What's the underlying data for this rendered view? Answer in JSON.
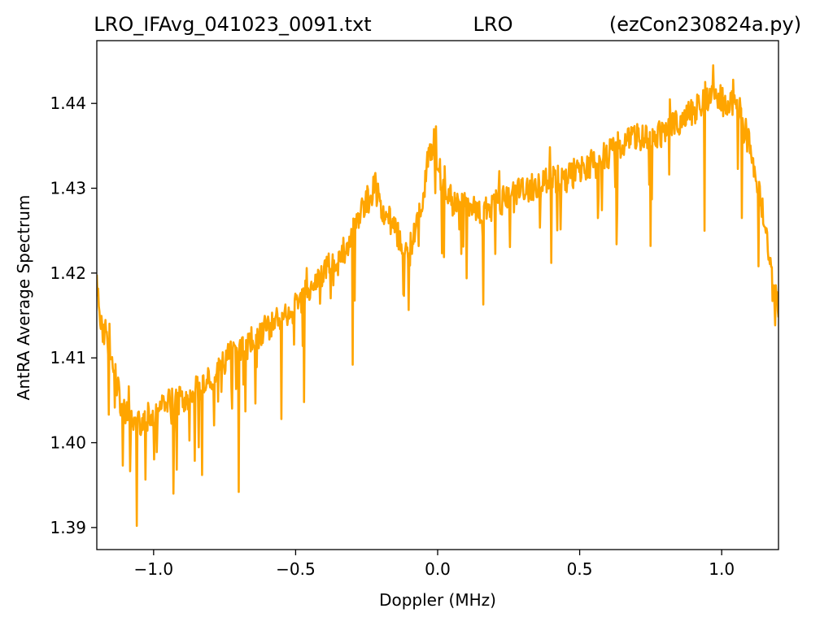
{
  "figure": {
    "title_left": "LRO_IFAvg_041023_0091.txt",
    "title_center": "LRO",
    "title_right": "(ezCon230824a.py)"
  },
  "chart_data": {
    "type": "line",
    "xlabel": "Doppler (MHz)",
    "ylabel": "AntRA Average Spectrum",
    "xlim": [
      -1.2,
      1.2
    ],
    "ylim": [
      1.3874,
      1.4474
    ],
    "xticks": [
      -1.0,
      -0.5,
      0.0,
      0.5,
      1.0
    ],
    "xtick_labels": [
      "−1.0",
      "−0.5",
      "0.0",
      "0.5",
      "1.0"
    ],
    "yticks": [
      1.39,
      1.4,
      1.41,
      1.42,
      1.43,
      1.44
    ],
    "ytick_labels": [
      "1.39",
      "1.40",
      "1.41",
      "1.42",
      "1.43",
      "1.44"
    ],
    "grid": false,
    "legend": "none",
    "series": [
      {
        "color": "#ffa500",
        "x": [
          -1.2,
          -1.19,
          -1.17,
          -1.15,
          -1.13,
          -1.11,
          -1.09,
          -1.07,
          -1.05,
          -1.03,
          -1.0,
          -0.97,
          -0.94,
          -0.9,
          -0.86,
          -0.82,
          -0.78,
          -0.74,
          -0.7,
          -0.66,
          -0.62,
          -0.58,
          -0.54,
          -0.5,
          -0.46,
          -0.42,
          -0.38,
          -0.34,
          -0.31,
          -0.28,
          -0.26,
          -0.24,
          -0.22,
          -0.2,
          -0.18,
          -0.16,
          -0.13,
          -0.1,
          -0.08,
          -0.06,
          -0.05,
          -0.04,
          -0.03,
          -0.02,
          -0.01,
          0.0,
          0.01,
          0.02,
          0.04,
          0.06,
          0.1,
          0.15,
          0.2,
          0.25,
          0.3,
          0.35,
          0.4,
          0.45,
          0.5,
          0.55,
          0.6,
          0.65,
          0.7,
          0.75,
          0.8,
          0.85,
          0.9,
          0.93,
          0.96,
          0.99,
          1.02,
          1.05,
          1.08,
          1.1,
          1.12,
          1.14,
          1.16,
          1.18,
          1.2
        ],
        "y": [
          1.419,
          1.414,
          1.413,
          1.411,
          1.407,
          1.404,
          1.403,
          1.402,
          1.402,
          1.403,
          1.403,
          1.404,
          1.405,
          1.405,
          1.406,
          1.407,
          1.408,
          1.41,
          1.411,
          1.412,
          1.413,
          1.414,
          1.415,
          1.416,
          1.418,
          1.419,
          1.421,
          1.422,
          1.424,
          1.426,
          1.428,
          1.429,
          1.43,
          1.428,
          1.427,
          1.426,
          1.424,
          1.422,
          1.425,
          1.427,
          1.429,
          1.432,
          1.434,
          1.435,
          1.434,
          1.433,
          1.431,
          1.43,
          1.429,
          1.428,
          1.428,
          1.427,
          1.428,
          1.429,
          1.43,
          1.43,
          1.431,
          1.431,
          1.432,
          1.433,
          1.434,
          1.435,
          1.436,
          1.436,
          1.437,
          1.438,
          1.439,
          1.44,
          1.441,
          1.441,
          1.44,
          1.44,
          1.438,
          1.435,
          1.431,
          1.428,
          1.424,
          1.418,
          1.416
        ],
        "dips": [
          [
            -1.06,
            1.3902
          ],
          [
            -0.93,
            1.394
          ],
          [
            -0.83,
            1.3962
          ],
          [
            -0.7,
            1.3942
          ],
          [
            -0.55,
            1.4028
          ],
          [
            -0.47,
            1.4048
          ],
          [
            -0.3,
            1.4092
          ],
          [
            -0.12,
            1.4175
          ],
          [
            0.16,
            1.4163
          ],
          [
            0.4,
            1.4212
          ],
          [
            0.63,
            1.4234
          ],
          [
            0.75,
            1.4232
          ],
          [
            0.94,
            1.425
          ],
          [
            1.07,
            1.4265
          ],
          [
            1.13,
            1.4208
          ]
        ],
        "spikes": [
          [
            -0.22,
            1.4318
          ],
          [
            -0.005,
            1.4373
          ],
          [
            0.97,
            1.4445
          ],
          [
            1.04,
            1.4428
          ]
        ]
      }
    ]
  }
}
